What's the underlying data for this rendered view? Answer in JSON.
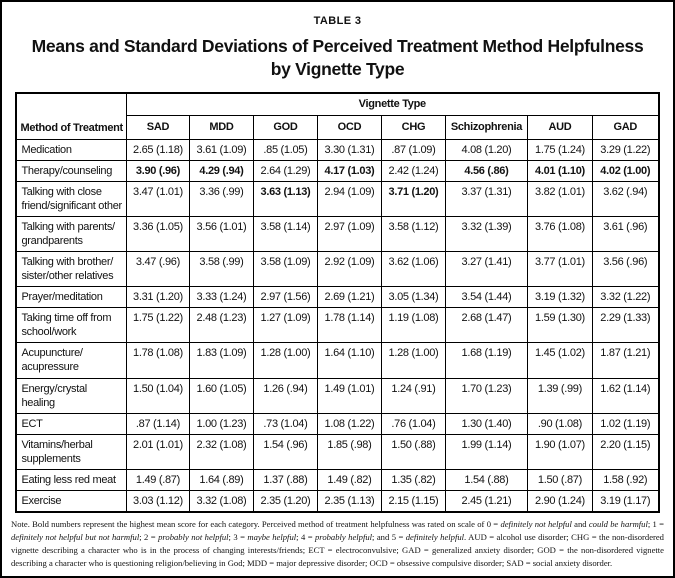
{
  "page": {
    "label": "TABLE 3",
    "title_line1": "Means and Standard Deviations of Perceived Treatment Method Helpfulness",
    "title_line2": "by Vignette Type"
  },
  "table": {
    "group_header": "Vignette Type",
    "row_header": "Method of Treatment",
    "columns": [
      "SAD",
      "MDD",
      "GOD",
      "OCD",
      "CHG",
      "Schizophrenia",
      "AUD",
      "GAD"
    ],
    "rows": [
      {
        "method": "Medication",
        "values": [
          "2.65 (1.18)",
          "3.61 (1.09)",
          ".85 (1.05)",
          "3.30 (1.31)",
          ".87 (1.09)",
          "4.08 (1.20)",
          "1.75 (1.24)",
          "3.29 (1.22)"
        ],
        "bold": []
      },
      {
        "method": "Therapy/counseling",
        "values": [
          "3.90 (.96)",
          "4.29 (.94)",
          "2.64 (1.29)",
          "4.17 (1.03)",
          "2.42 (1.24)",
          "4.56 (.86)",
          "4.01 (1.10)",
          "4.02 (1.00)"
        ],
        "bold": [
          0,
          1,
          3,
          5,
          6,
          7
        ]
      },
      {
        "method": "Talking with close friend/significant other",
        "values": [
          "3.47 (1.01)",
          "3.36 (.99)",
          "3.63 (1.13)",
          "2.94 (1.09)",
          "3.71 (1.20)",
          "3.37 (1.31)",
          "3.82 (1.01)",
          "3.62 (.94)"
        ],
        "bold": [
          2,
          4
        ]
      },
      {
        "method": "Talking with parents/grandparents",
        "values": [
          "3.36 (1.05)",
          "3.56 (1.01)",
          "3.58 (1.14)",
          "2.97 (1.09)",
          "3.58 (1.12)",
          "3.32 (1.39)",
          "3.76 (1.08)",
          "3.61 (.96)"
        ],
        "bold": []
      },
      {
        "method": "Talking with brother/sister/other relatives",
        "values": [
          "3.47 (.96)",
          "3.58 (.99)",
          "3.58 (1.09)",
          "2.92 (1.09)",
          "3.62 (1.06)",
          "3.27 (1.41)",
          "3.77 (1.01)",
          "3.56 (.96)"
        ],
        "bold": []
      },
      {
        "method": "Prayer/meditation",
        "values": [
          "3.31 (1.20)",
          "3.33 (1.24)",
          "2.97 (1.56)",
          "2.69 (1.21)",
          "3.05 (1.34)",
          "3.54 (1.44)",
          "3.19 (1.32)",
          "3.32 (1.22)"
        ],
        "bold": []
      },
      {
        "method": "Taking time off from school/work",
        "values": [
          "1.75 (1.22)",
          "2.48 (1.23)",
          "1.27 (1.09)",
          "1.78 (1.14)",
          "1.19 (1.08)",
          "2.68 (1.47)",
          "1.59 (1.30)",
          "2.29 (1.33)"
        ],
        "bold": []
      },
      {
        "method": "Acupuncture/acupressure",
        "values": [
          "1.78 (1.08)",
          "1.83 (1.09)",
          "1.28 (1.00)",
          "1.64 (1.10)",
          "1.28 (1.00)",
          "1.68 (1.19)",
          "1.45 (1.02)",
          "1.87 (1.21)"
        ],
        "bold": []
      },
      {
        "method": "Energy/crystal healing",
        "values": [
          "1.50 (1.04)",
          "1.60 (1.05)",
          "1.26 (.94)",
          "1.49 (1.01)",
          "1.24 (.91)",
          "1.70 (1.23)",
          "1.39 (.99)",
          "1.62 (1.14)"
        ],
        "bold": []
      },
      {
        "method": "ECT",
        "values": [
          ".87 (1.14)",
          "1.00 (1.23)",
          ".73 (1.04)",
          "1.08 (1.22)",
          ".76 (1.04)",
          "1.30 (1.40)",
          ".90 (1.08)",
          "1.02 (1.19)"
        ],
        "bold": []
      },
      {
        "method": "Vitamins/herbal supplements",
        "values": [
          "2.01 (1.01)",
          "2.32 (1.08)",
          "1.54 (.96)",
          "1.85 (.98)",
          "1.50 (.88)",
          "1.99 (1.14)",
          "1.90 (1.07)",
          "2.20 (1.15)"
        ],
        "bold": []
      },
      {
        "method": "Eating less red meat",
        "values": [
          "1.49 (.87)",
          "1.64 (.89)",
          "1.37 (.88)",
          "1.49 (.82)",
          "1.35 (.82)",
          "1.54 (.88)",
          "1.50 (.87)",
          "1.58 (.92)"
        ],
        "bold": []
      },
      {
        "method": "Exercise",
        "values": [
          "3.03 (1.12)",
          "3.32 (1.08)",
          "2.35 (1.20)",
          "2.35 (1.13)",
          "2.15 (1.15)",
          "2.45 (1.21)",
          "2.90 (1.24)",
          "3.19 (1.17)"
        ],
        "bold": []
      }
    ]
  },
  "note": {
    "segments": [
      {
        "text": "Note. Bold numbers represent the highest mean score for each category. Perceived method of treatment helpfulness was rated on scale of 0 = ",
        "italic": false
      },
      {
        "text": "definitely not helpful",
        "italic": true
      },
      {
        "text": " and ",
        "italic": false
      },
      {
        "text": "could be harmful",
        "italic": true
      },
      {
        "text": "; 1 = ",
        "italic": false
      },
      {
        "text": "definitely not helpful but not harmful",
        "italic": true
      },
      {
        "text": "; 2 = ",
        "italic": false
      },
      {
        "text": "probably not helpful",
        "italic": true
      },
      {
        "text": "; 3 = ",
        "italic": false
      },
      {
        "text": "maybe helpful",
        "italic": true
      },
      {
        "text": "; 4 = ",
        "italic": false
      },
      {
        "text": "probably helpful",
        "italic": true
      },
      {
        "text": "; and 5 = ",
        "italic": false
      },
      {
        "text": "definitely helpful",
        "italic": true
      },
      {
        "text": ". AUD = alcohol use disorder; CHG = the non-disordered vignette describing a character who is in the process of changing interests/friends; ECT = electroconvulsive; GAD = generalized anxiety disorder; GOD = the non-disordered vignette describing a character who is questioning religion/believing in God; MDD = major depressive disorder; OCD = obsessive compulsive disorder; SAD = social anxiety disorder.",
        "italic": false
      }
    ]
  }
}
